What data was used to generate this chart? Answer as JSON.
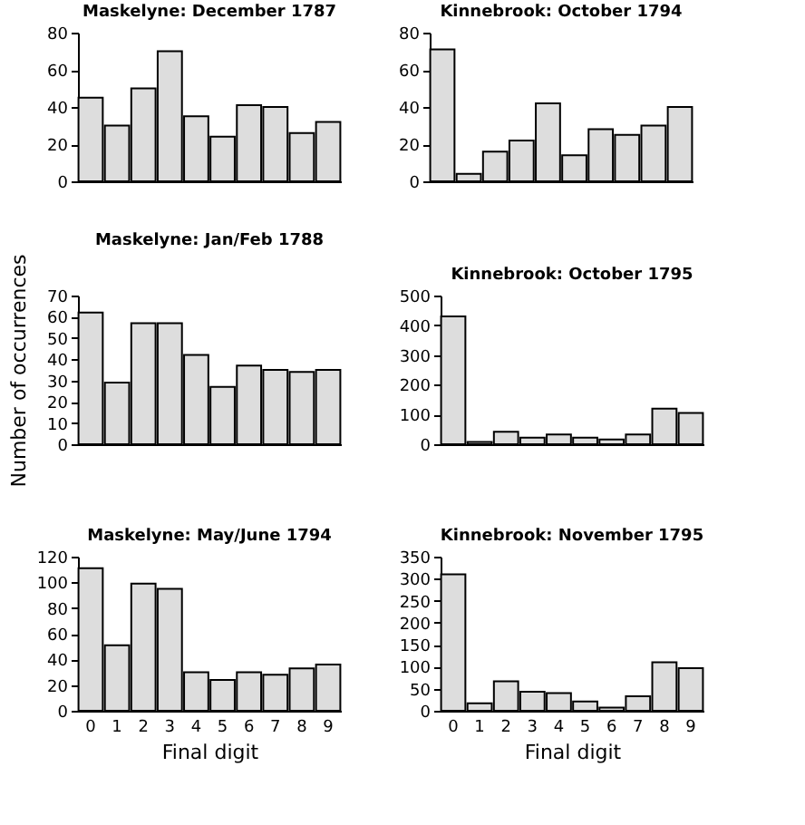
{
  "chart_data": [
    {
      "type": "bar",
      "title": "Maskelyne: December 1787",
      "categories": [
        "0",
        "1",
        "2",
        "3",
        "4",
        "5",
        "6",
        "7",
        "8",
        "9"
      ],
      "values": [
        45,
        30,
        50,
        70,
        35,
        24,
        41,
        40,
        26,
        32
      ],
      "color": "#dddddd",
      "ylim": [
        0,
        80
      ],
      "yticks": [
        0,
        20,
        40,
        60,
        80
      ],
      "tick_labels": "y"
    },
    {
      "type": "bar",
      "title": "Kinnebrook: October 1794",
      "categories": [
        "0",
        "1",
        "2",
        "3",
        "4",
        "5",
        "6",
        "7",
        "8",
        "9"
      ],
      "values": [
        71,
        4,
        16,
        22,
        42,
        14,
        28,
        25,
        30,
        40
      ],
      "color": "#dddddd",
      "ylim": [
        0,
        80
      ],
      "yticks": [
        0,
        20,
        40,
        60,
        80
      ],
      "tick_labels": "y"
    },
    {
      "type": "bar",
      "title": "Maskelyne: Jan/Feb 1788",
      "ylabel": "Number of occurrences",
      "categories": [
        "0",
        "1",
        "2",
        "3",
        "4",
        "5",
        "6",
        "7",
        "8",
        "9"
      ],
      "values": [
        62,
        29,
        57,
        57,
        42,
        27,
        37,
        35,
        34,
        35
      ],
      "color": "#dddddd",
      "ylim": [
        0,
        70
      ],
      "yticks": [
        0,
        10,
        20,
        30,
        40,
        50,
        60,
        70
      ],
      "tick_labels": "y"
    },
    {
      "type": "bar",
      "title": "Kinnebrook: October 1795",
      "categories": [
        "0",
        "1",
        "2",
        "3",
        "4",
        "5",
        "6",
        "7",
        "8",
        "9"
      ],
      "values": [
        430,
        8,
        42,
        22,
        33,
        22,
        16,
        33,
        120,
        105
      ],
      "color": "#dddddd",
      "ylim": [
        0,
        500
      ],
      "yticks": [
        0,
        100,
        200,
        300,
        400,
        500
      ],
      "tick_labels": "y"
    },
    {
      "type": "bar",
      "title": "Maskelyne: May/June 1794",
      "xlabel": "Final digit",
      "categories": [
        "0",
        "1",
        "2",
        "3",
        "4",
        "5",
        "6",
        "7",
        "8",
        "9"
      ],
      "values": [
        111,
        51,
        99,
        95,
        30,
        24,
        30,
        28,
        33,
        36
      ],
      "color": "#dddddd",
      "ylim": [
        0,
        120
      ],
      "yticks": [
        0,
        20,
        40,
        60,
        80,
        100,
        120
      ]
    },
    {
      "type": "bar",
      "title": "Kinnebrook: November 1795",
      "xlabel": "Final digit",
      "categories": [
        "0",
        "1",
        "2",
        "3",
        "4",
        "5",
        "6",
        "7",
        "8",
        "9"
      ],
      "values": [
        310,
        17,
        67,
        43,
        40,
        21,
        7,
        33,
        110,
        97
      ],
      "color": "#dddddd",
      "ylim": [
        0,
        350
      ],
      "yticks": [
        0,
        50,
        100,
        150,
        200,
        250,
        300,
        350
      ]
    }
  ]
}
